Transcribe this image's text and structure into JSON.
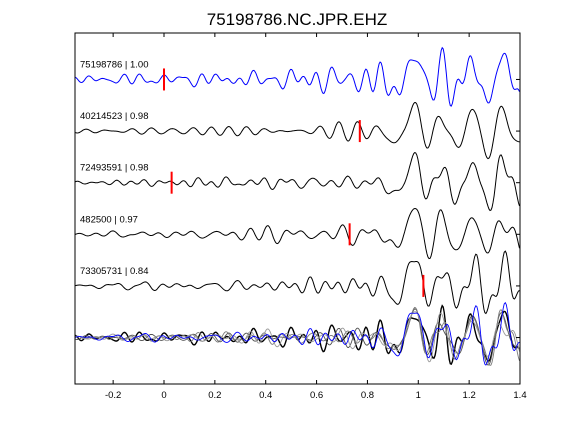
{
  "chart_data": {
    "type": "line",
    "title": "75198786.NC.JPR.EHZ",
    "xlabel": "",
    "ylabel": "",
    "xlim": [
      -0.35,
      1.4
    ],
    "x_ticks": [
      -0.2,
      0,
      0.2,
      0.4,
      0.6,
      0.8,
      1,
      1.2,
      1.4
    ],
    "x_tick_labels": [
      "-0.2",
      "0",
      "0.2",
      "0.4",
      "0.6",
      "0.8",
      "1",
      "1.2",
      "1.4"
    ],
    "grid": false,
    "traces": [
      {
        "label": "75198786 | 1.00",
        "event": "75198786",
        "correlation": 1.0,
        "pick_time": 0.0,
        "color": "#0000ff",
        "seed": 1,
        "amp_pre": 0.035,
        "amp_post": 0.2,
        "rise": 0.22
      },
      {
        "label": "40214523 | 0.98",
        "event": "40214523",
        "correlation": 0.98,
        "pick_time": 0.77,
        "color": "#000000",
        "seed": 2,
        "amp_pre": 0.025,
        "amp_post": 0.22,
        "rise": 0.28
      },
      {
        "label": "72493591 | 0.98",
        "event": "72493591",
        "correlation": 0.98,
        "pick_time": 0.03,
        "color": "#000000",
        "seed": 3,
        "amp_pre": 0.022,
        "amp_post": 0.21,
        "rise": 0.26
      },
      {
        "label": "482500 | 0.97",
        "event": "482500",
        "correlation": 0.97,
        "pick_time": 0.73,
        "color": "#000000",
        "seed": 4,
        "amp_pre": 0.028,
        "amp_post": 0.2,
        "rise": 0.24
      },
      {
        "label": "73305731 | 0.84",
        "event": "73305731",
        "correlation": 0.84,
        "pick_time": 1.02,
        "color": "#000000",
        "seed": 5,
        "amp_pre": 0.03,
        "amp_post": 0.24,
        "rise": 0.2
      }
    ],
    "stack": {
      "colors": [
        "#000000",
        "#505050",
        "#7a7a7a",
        "#999999",
        "#0000ff"
      ]
    },
    "pick_color": "#ff0000"
  }
}
